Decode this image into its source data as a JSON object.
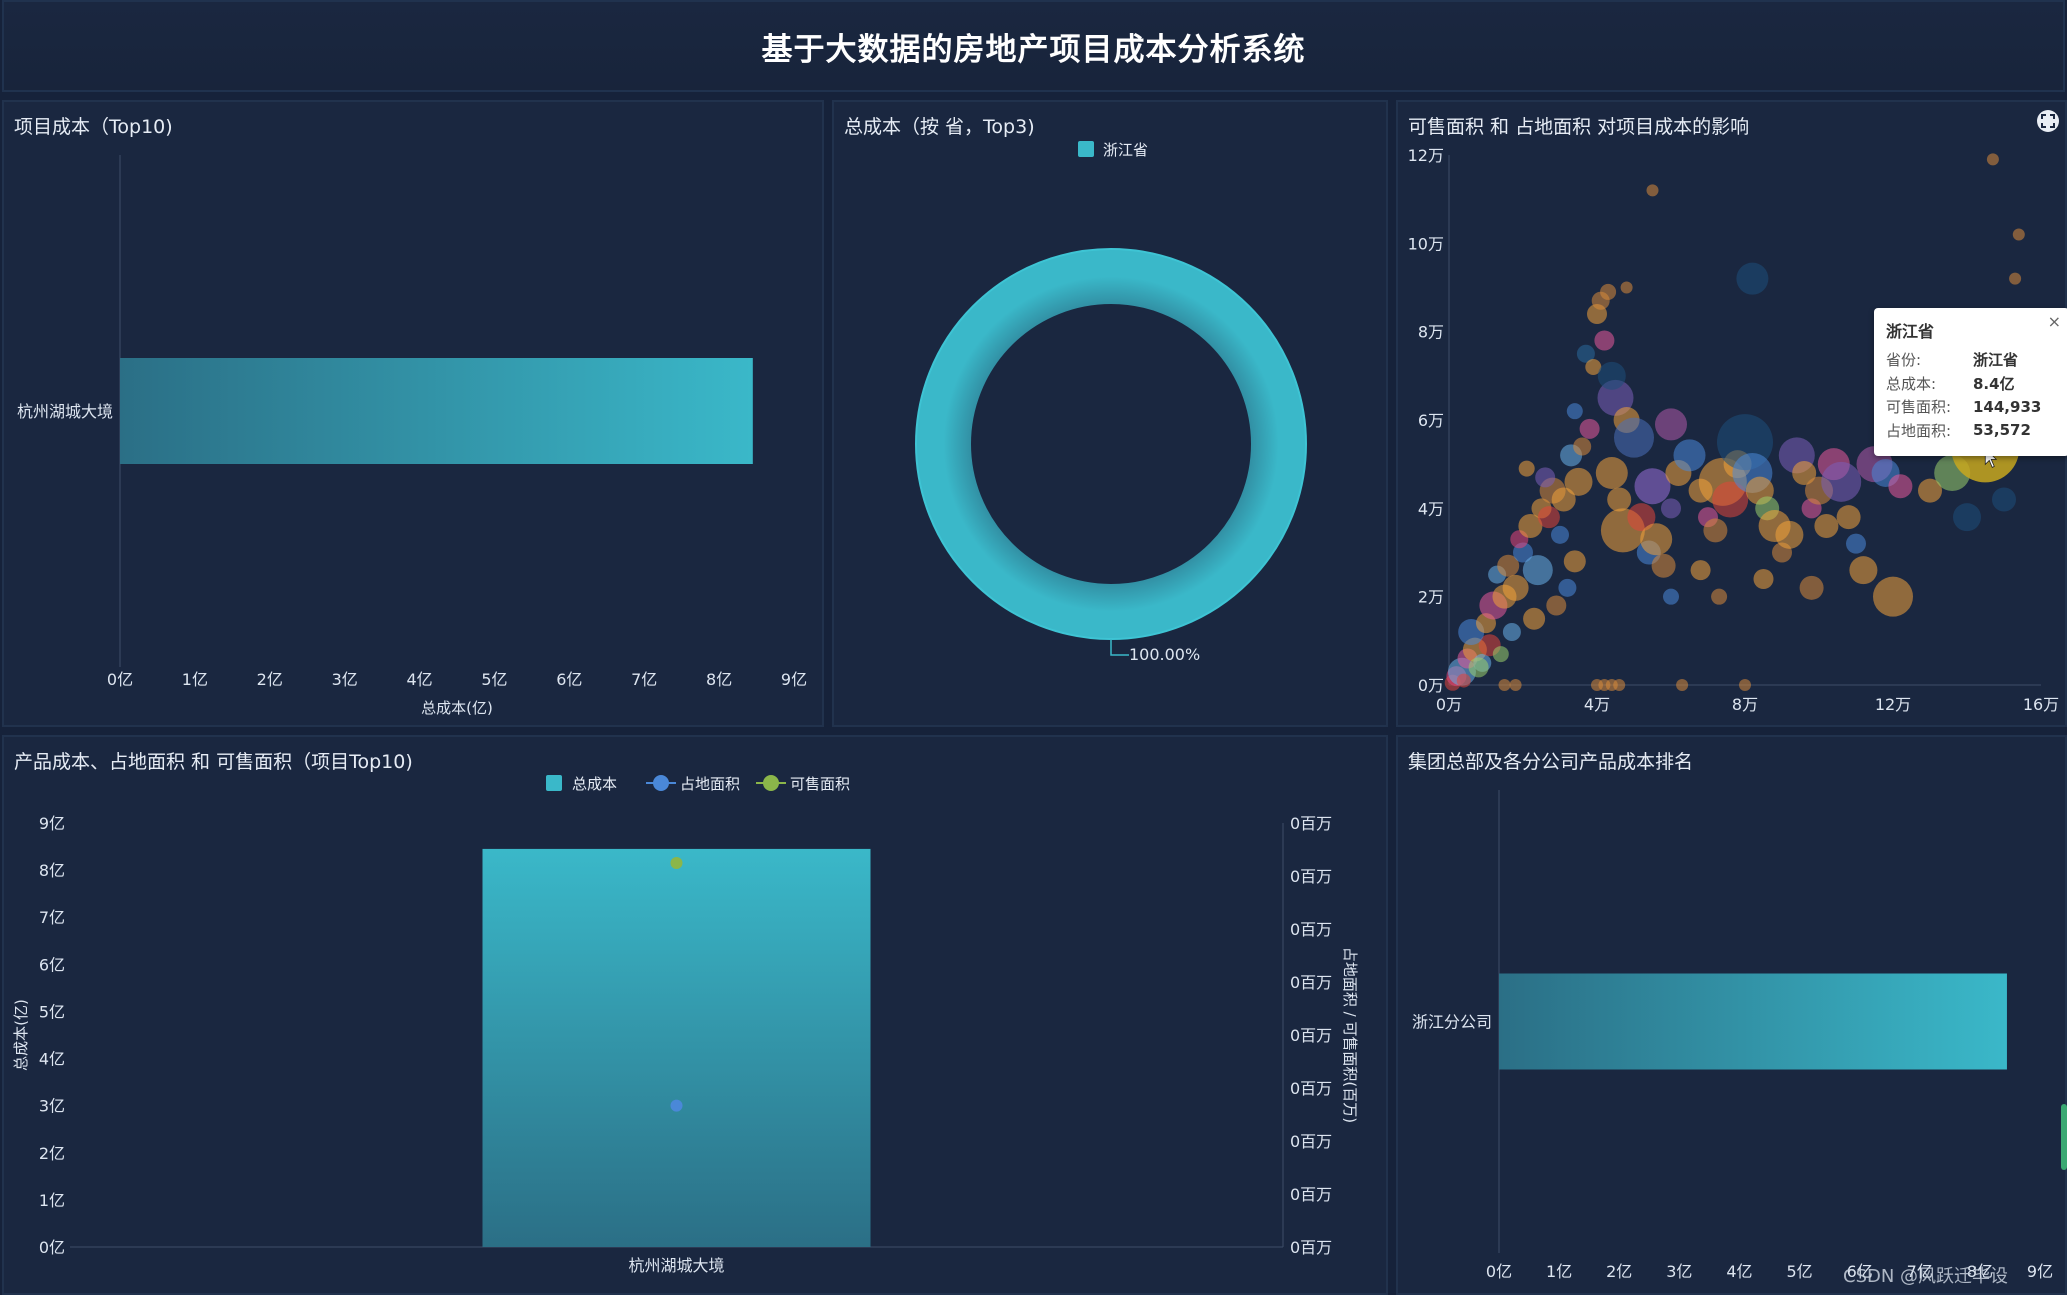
{
  "page": {
    "title": "基于大数据的房地产项目成本分析系统"
  },
  "panels": {
    "p1": {
      "title": "项目成本（Top10)"
    },
    "p2": {
      "title": "总成本（按 省，Top3)"
    },
    "p3": {
      "title": "可售面积 和 占地面积 对项目成本的影响"
    },
    "p4": {
      "title": "产品成本、占地面积 和 可售面积（项目Top10)"
    },
    "p5": {
      "title": "集团总部及各分公司产品成本排名"
    }
  },
  "colors": {
    "bar": "#3ab8c9",
    "bar_dark": "#2b6f86",
    "scatter_a": "#4a88d8",
    "scatter_b": "#8bb64a",
    "bg": "#1a2740"
  },
  "chart_data": [
    {
      "id": "project_cost_top10",
      "type": "bar",
      "orientation": "horizontal",
      "categories": [
        "杭州湖城大境"
      ],
      "values": [
        8.45
      ],
      "xlabel": "总成本(亿)",
      "xlim": [
        0,
        9
      ],
      "xticks": [
        "0亿",
        "1亿",
        "2亿",
        "3亿",
        "4亿",
        "5亿",
        "6亿",
        "7亿",
        "8亿",
        "9亿"
      ]
    },
    {
      "id": "province_cost_top3",
      "type": "pie",
      "legend": [
        "浙江省"
      ],
      "slices": [
        {
          "name": "浙江省",
          "value": 100
        }
      ],
      "label": "100.00%"
    },
    {
      "id": "area_vs_cost",
      "type": "scatter",
      "xlim": [
        0,
        160000
      ],
      "ylim": [
        0,
        120000
      ],
      "xticks": [
        "0万",
        "4万",
        "8万",
        "12万",
        "16万"
      ],
      "yticks": [
        "0万",
        "2万",
        "4万",
        "6万",
        "8万",
        "10万",
        "12万"
      ],
      "tooltip": {
        "title": "浙江省",
        "rows": [
          {
            "k": "省份:",
            "v": "浙江省"
          },
          {
            "k": "总成本:",
            "v": "8.4亿"
          },
          {
            "k": "可售面积:",
            "v": "144,933"
          },
          {
            "k": "占地面积:",
            "v": "53,572"
          }
        ]
      },
      "highlight": {
        "x": 144933,
        "y": 53572
      },
      "points": [
        [
          1000,
          500,
          8,
          "#e0453a"
        ],
        [
          2000,
          2000,
          10,
          "#e8467a"
        ],
        [
          3500,
          3000,
          14,
          "#6ab0e8"
        ],
        [
          5000,
          6000,
          10,
          "#e85a9a"
        ],
        [
          7000,
          8000,
          12,
          "#f2a33a"
        ],
        [
          9000,
          5000,
          9,
          "#6ab0e8"
        ],
        [
          11000,
          9000,
          11,
          "#e0453a"
        ],
        [
          14000,
          7000,
          8,
          "#9bd06b"
        ],
        [
          6000,
          12000,
          13,
          "#4a88d8"
        ],
        [
          10000,
          14000,
          10,
          "#f2a33a"
        ],
        [
          12000,
          18000,
          14,
          "#e85a9a"
        ],
        [
          15000,
          20000,
          12,
          "#f2a33a"
        ],
        [
          13000,
          25000,
          9,
          "#6ab0e8"
        ],
        [
          16000,
          27000,
          11,
          "#d98b3a"
        ],
        [
          18000,
          22000,
          13,
          "#f2a33a"
        ],
        [
          20000,
          30000,
          10,
          "#4a88d8"
        ],
        [
          19000,
          33000,
          9,
          "#e8467a"
        ],
        [
          22000,
          36000,
          12,
          "#f2a33a"
        ],
        [
          24000,
          26000,
          15,
          "#6ab0e8"
        ],
        [
          25000,
          40000,
          10,
          "#f2a33a"
        ],
        [
          27000,
          38000,
          11,
          "#e0453a"
        ],
        [
          28000,
          44000,
          13,
          "#d98b3a"
        ],
        [
          30000,
          34000,
          9,
          "#4a88d8"
        ],
        [
          31000,
          42000,
          12,
          "#f2a33a"
        ],
        [
          26000,
          47000,
          10,
          "#7c5fb8"
        ],
        [
          21000,
          49000,
          8,
          "#f2a33a"
        ],
        [
          33000,
          52000,
          11,
          "#6ab0e8"
        ],
        [
          35000,
          46000,
          14,
          "#f2a33a"
        ],
        [
          36000,
          54000,
          9,
          "#d98b3a"
        ],
        [
          38000,
          58000,
          10,
          "#e85a9a"
        ],
        [
          34000,
          62000,
          8,
          "#4a88d8"
        ],
        [
          37000,
          75000,
          9,
          "#2a6a9a"
        ],
        [
          40000,
          84000,
          10,
          "#f2a33a"
        ],
        [
          41000,
          87000,
          9,
          "#d98b3a"
        ],
        [
          43000,
          89000,
          8,
          "#d98b3a"
        ],
        [
          39000,
          72000,
          8,
          "#f2a33a"
        ],
        [
          42000,
          78000,
          10,
          "#e85a9a"
        ],
        [
          45000,
          65000,
          18,
          "#7c5fb8"
        ],
        [
          48000,
          60000,
          13,
          "#f2a33a"
        ],
        [
          50000,
          56000,
          20,
          "#4a6fb8"
        ],
        [
          44000,
          48000,
          16,
          "#f2a33a"
        ],
        [
          46000,
          42000,
          12,
          "#f2a33a"
        ],
        [
          47000,
          35000,
          22,
          "#f2a33a"
        ],
        [
          52000,
          38000,
          14,
          "#e0453a"
        ],
        [
          54000,
          30000,
          12,
          "#4a88d8"
        ],
        [
          56000,
          33000,
          16,
          "#f2a33a"
        ],
        [
          58000,
          27000,
          12,
          "#d98b3a"
        ],
        [
          60000,
          40000,
          10,
          "#7c5fb8"
        ],
        [
          55000,
          45000,
          18,
          "#9b6fd8"
        ],
        [
          62000,
          48000,
          13,
          "#f2a33a"
        ],
        [
          65000,
          52000,
          16,
          "#4a88d8"
        ],
        [
          68000,
          44000,
          12,
          "#f2a33a"
        ],
        [
          70000,
          38000,
          10,
          "#e85a9a"
        ],
        [
          72000,
          35000,
          12,
          "#d98b3a"
        ],
        [
          74000,
          46000,
          24,
          "#f2a33a"
        ],
        [
          76000,
          42000,
          18,
          "#e0453a"
        ],
        [
          78000,
          50000,
          14,
          "#f2a33a"
        ],
        [
          80000,
          55000,
          28,
          "#1e4f7a"
        ],
        [
          82000,
          48000,
          20,
          "#4a88d8"
        ],
        [
          84000,
          44000,
          14,
          "#f2a33a"
        ],
        [
          86000,
          40000,
          12,
          "#9bd06b"
        ],
        [
          88000,
          36000,
          16,
          "#f2a33a"
        ],
        [
          90000,
          30000,
          10,
          "#d98b3a"
        ],
        [
          92000,
          34000,
          14,
          "#f2a33a"
        ],
        [
          94000,
          52000,
          18,
          "#7c5fb8"
        ],
        [
          96000,
          48000,
          12,
          "#f2a33a"
        ],
        [
          98000,
          40000,
          10,
          "#e85a9a"
        ],
        [
          100000,
          44000,
          14,
          "#d98b3a"
        ],
        [
          102000,
          36000,
          12,
          "#f2a33a"
        ],
        [
          104000,
          50000,
          16,
          "#e85a9a"
        ],
        [
          106000,
          46000,
          20,
          "#7c5fb8"
        ],
        [
          108000,
          38000,
          12,
          "#f2a33a"
        ],
        [
          110000,
          32000,
          10,
          "#4a88d8"
        ],
        [
          112000,
          26000,
          14,
          "#f2a33a"
        ],
        [
          115000,
          50000,
          18,
          "#b05aa8"
        ],
        [
          118000,
          48000,
          14,
          "#4a88d8"
        ],
        [
          122000,
          45000,
          12,
          "#e85a9a"
        ],
        [
          126000,
          60000,
          10,
          "#d98b3a"
        ],
        [
          130000,
          44000,
          12,
          "#f2a33a"
        ],
        [
          136000,
          48000,
          18,
          "#9bd06b"
        ],
        [
          140000,
          38000,
          14,
          "#1e4f7a"
        ],
        [
          150000,
          42000,
          12,
          "#1e4f7a"
        ],
        [
          138000,
          56000,
          10,
          "#1e4f7a"
        ],
        [
          120000,
          20000,
          20,
          "#f2a33a"
        ],
        [
          98000,
          22000,
          12,
          "#d98b3a"
        ],
        [
          85000,
          24000,
          10,
          "#f2a33a"
        ],
        [
          73000,
          20000,
          8,
          "#d98b3a"
        ],
        [
          68000,
          26000,
          10,
          "#f2a33a"
        ],
        [
          60000,
          20000,
          8,
          "#4a88d8"
        ],
        [
          34000,
          28000,
          11,
          "#f2a33a"
        ],
        [
          32000,
          22000,
          9,
          "#4a88d8"
        ],
        [
          29000,
          18000,
          10,
          "#d98b3a"
        ],
        [
          23000,
          15000,
          11,
          "#f2a33a"
        ],
        [
          17000,
          12000,
          9,
          "#6ab0e8"
        ],
        [
          8000,
          4000,
          10,
          "#9bd06b"
        ],
        [
          4000,
          1000,
          7,
          "#e0453a"
        ],
        [
          15000,
          0,
          6,
          "#d98b3a"
        ],
        [
          18000,
          0,
          6,
          "#d98b3a"
        ],
        [
          40000,
          0,
          6,
          "#d98b3a"
        ],
        [
          42000,
          0,
          6,
          "#d98b3a"
        ],
        [
          44000,
          0,
          6,
          "#d98b3a"
        ],
        [
          46000,
          0,
          6,
          "#d98b3a"
        ],
        [
          63000,
          0,
          6,
          "#d98b3a"
        ],
        [
          80000,
          0,
          6,
          "#d98b3a"
        ],
        [
          55000,
          112000,
          6,
          "#d98b3a"
        ],
        [
          147000,
          119000,
          6,
          "#d98b3a"
        ],
        [
          154000,
          102000,
          6,
          "#d98b3a"
        ],
        [
          153000,
          92000,
          6,
          "#d98b3a"
        ],
        [
          82000,
          92000,
          16,
          "#1e4f7a"
        ],
        [
          48000,
          90000,
          6,
          "#d98b3a"
        ],
        [
          44000,
          70000,
          14,
          "#1e4f7a"
        ],
        [
          60000,
          59000,
          16,
          "#b05aa8"
        ]
      ]
    },
    {
      "id": "product_cost_area",
      "type": "bar",
      "legend": [
        "总成本",
        "占地面积",
        "可售面积"
      ],
      "categories": [
        "杭州湖城大境"
      ],
      "series": [
        {
          "name": "总成本",
          "values": [
            8.45
          ]
        },
        {
          "name": "占地面积",
          "values": [
            3
          ]
        },
        {
          "name": "可售面积",
          "values": [
            8.15
          ]
        }
      ],
      "ylabel_left": "总成本(亿)",
      "ylabel_right": "占地面积 / 可售面积(百万)",
      "ylim": [
        0,
        9
      ],
      "yticks_left": [
        "0亿",
        "1亿",
        "2亿",
        "3亿",
        "4亿",
        "5亿",
        "6亿",
        "7亿",
        "8亿",
        "9亿"
      ],
      "yticks_right": [
        "0百万",
        "0百万",
        "0百万",
        "0百万",
        "0百万",
        "0百万",
        "0百万",
        "0百万",
        "0百万"
      ]
    },
    {
      "id": "branch_cost_rank",
      "type": "bar",
      "orientation": "horizontal",
      "categories": [
        "浙江分公司"
      ],
      "values": [
        8.45
      ],
      "xlim": [
        0,
        9
      ],
      "xticks": [
        "0亿",
        "1亿",
        "2亿",
        "3亿",
        "4亿",
        "5亿",
        "6亿",
        "7亿",
        "8亿",
        "9亿"
      ]
    }
  ],
  "watermark": "CSDN @风跃迁毕设"
}
